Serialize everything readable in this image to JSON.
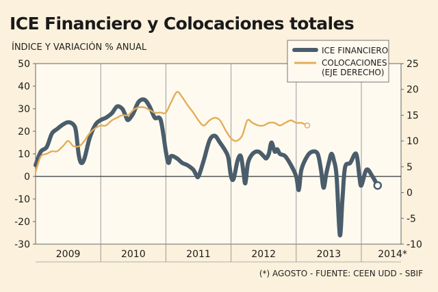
{
  "chart_data": {
    "type": "line",
    "title": "ICE Financiero y Colocaciones totales",
    "subtitle": "ÍNDICE Y VARIACIÓN % ANUAL",
    "source": "(*) AGOSTO - FUENTE: CEEN UDD - SBIF",
    "years": [
      "2009",
      "2010",
      "2011",
      "2012",
      "2013",
      "2014*"
    ],
    "y_left": {
      "ylim": [
        -30,
        50
      ],
      "ticks": [
        50,
        40,
        30,
        20,
        10,
        0,
        -10,
        -20,
        -30
      ]
    },
    "y_right": {
      "ylim": [
        -10,
        25
      ],
      "ticks": [
        25,
        20,
        15,
        10,
        5,
        0,
        -5,
        -10
      ]
    },
    "x_unit": "years (fractional, 2009.0 = start of 2009)",
    "series": [
      {
        "name": "ICE FINANCIERO",
        "axis": "left",
        "color": "#4a5d6b",
        "points": [
          [
            2009.0,
            5
          ],
          [
            2009.08,
            11
          ],
          [
            2009.17,
            13
          ],
          [
            2009.25,
            19
          ],
          [
            2009.33,
            21
          ],
          [
            2009.42,
            23
          ],
          [
            2009.5,
            24
          ],
          [
            2009.58,
            23
          ],
          [
            2009.62,
            20
          ],
          [
            2009.66,
            10
          ],
          [
            2009.7,
            6
          ],
          [
            2009.75,
            8
          ],
          [
            2009.83,
            17
          ],
          [
            2009.92,
            23
          ],
          [
            2010.0,
            25
          ],
          [
            2010.08,
            26
          ],
          [
            2010.17,
            28
          ],
          [
            2010.25,
            31
          ],
          [
            2010.33,
            30
          ],
          [
            2010.38,
            27
          ],
          [
            2010.42,
            25
          ],
          [
            2010.5,
            28
          ],
          [
            2010.58,
            33
          ],
          [
            2010.67,
            34
          ],
          [
            2010.75,
            31
          ],
          [
            2010.83,
            26
          ],
          [
            2010.92,
            25
          ],
          [
            2011.0,
            11
          ],
          [
            2011.04,
            6
          ],
          [
            2011.08,
            9
          ],
          [
            2011.17,
            8
          ],
          [
            2011.25,
            6
          ],
          [
            2011.33,
            5
          ],
          [
            2011.42,
            3
          ],
          [
            2011.46,
            1
          ],
          [
            2011.5,
            0
          ],
          [
            2011.58,
            7
          ],
          [
            2011.67,
            16
          ],
          [
            2011.75,
            18
          ],
          [
            2011.83,
            15
          ],
          [
            2011.92,
            11
          ],
          [
            2011.96,
            8
          ],
          [
            2012.0,
            0
          ],
          [
            2012.04,
            -1
          ],
          [
            2012.1,
            7
          ],
          [
            2012.15,
            9
          ],
          [
            2012.19,
            2
          ],
          [
            2012.22,
            -3
          ],
          [
            2012.26,
            6
          ],
          [
            2012.33,
            10
          ],
          [
            2012.42,
            11
          ],
          [
            2012.5,
            9
          ],
          [
            2012.54,
            8
          ],
          [
            2012.58,
            10
          ],
          [
            2012.62,
            15
          ],
          [
            2012.67,
            11
          ],
          [
            2012.71,
            12
          ],
          [
            2012.75,
            10
          ],
          [
            2012.83,
            9
          ],
          [
            2012.92,
            5
          ],
          [
            2013.0,
            0
          ],
          [
            2013.04,
            -6
          ],
          [
            2013.08,
            3
          ],
          [
            2013.17,
            9
          ],
          [
            2013.25,
            11
          ],
          [
            2013.33,
            10
          ],
          [
            2013.38,
            3
          ],
          [
            2013.42,
            -5
          ],
          [
            2013.46,
            1
          ],
          [
            2013.5,
            6
          ],
          [
            2013.54,
            10
          ],
          [
            2013.58,
            7
          ],
          [
            2013.62,
            0
          ],
          [
            2013.67,
            -26
          ],
          [
            2013.71,
            -10
          ],
          [
            2013.75,
            4
          ],
          [
            2013.83,
            6
          ],
          [
            2013.92,
            10
          ],
          [
            2013.97,
            0
          ],
          [
            2014.0,
            -4
          ],
          [
            2014.08,
            3
          ],
          [
            2014.17,
            0
          ],
          [
            2014.25,
            -4
          ]
        ]
      },
      {
        "name": "COLOCACIONES (EJE DERECHO)",
        "axis": "right",
        "color": "#e3ad57",
        "points": [
          [
            2009.0,
            4
          ],
          [
            2009.08,
            7
          ],
          [
            2009.17,
            7.5
          ],
          [
            2009.25,
            8
          ],
          [
            2009.33,
            8
          ],
          [
            2009.42,
            9
          ],
          [
            2009.5,
            10
          ],
          [
            2009.58,
            9
          ],
          [
            2009.67,
            9
          ],
          [
            2009.75,
            10
          ],
          [
            2009.83,
            11.5
          ],
          [
            2009.92,
            12.5
          ],
          [
            2010.0,
            13
          ],
          [
            2010.08,
            13
          ],
          [
            2010.17,
            14
          ],
          [
            2010.25,
            14.5
          ],
          [
            2010.33,
            15
          ],
          [
            2010.42,
            15
          ],
          [
            2010.5,
            16
          ],
          [
            2010.58,
            16.5
          ],
          [
            2010.67,
            16.5
          ],
          [
            2010.75,
            16
          ],
          [
            2010.83,
            15.5
          ],
          [
            2010.92,
            15.5
          ],
          [
            2011.0,
            15.5
          ],
          [
            2011.08,
            17.5
          ],
          [
            2011.17,
            19.5
          ],
          [
            2011.25,
            18.5
          ],
          [
            2011.33,
            17
          ],
          [
            2011.42,
            15.5
          ],
          [
            2011.5,
            14
          ],
          [
            2011.58,
            13
          ],
          [
            2011.67,
            14
          ],
          [
            2011.75,
            14.5
          ],
          [
            2011.83,
            14
          ],
          [
            2011.92,
            12
          ],
          [
            2012.0,
            10.5
          ],
          [
            2012.08,
            10
          ],
          [
            2012.17,
            11
          ],
          [
            2012.25,
            14
          ],
          [
            2012.33,
            13.5
          ],
          [
            2012.42,
            13
          ],
          [
            2012.5,
            13
          ],
          [
            2012.58,
            13.5
          ],
          [
            2012.67,
            13.5
          ],
          [
            2012.75,
            13
          ],
          [
            2012.83,
            13.5
          ],
          [
            2012.92,
            14
          ],
          [
            2013.0,
            13.5
          ],
          [
            2013.08,
            13.5
          ],
          [
            2013.17,
            13
          ]
        ]
      }
    ]
  }
}
